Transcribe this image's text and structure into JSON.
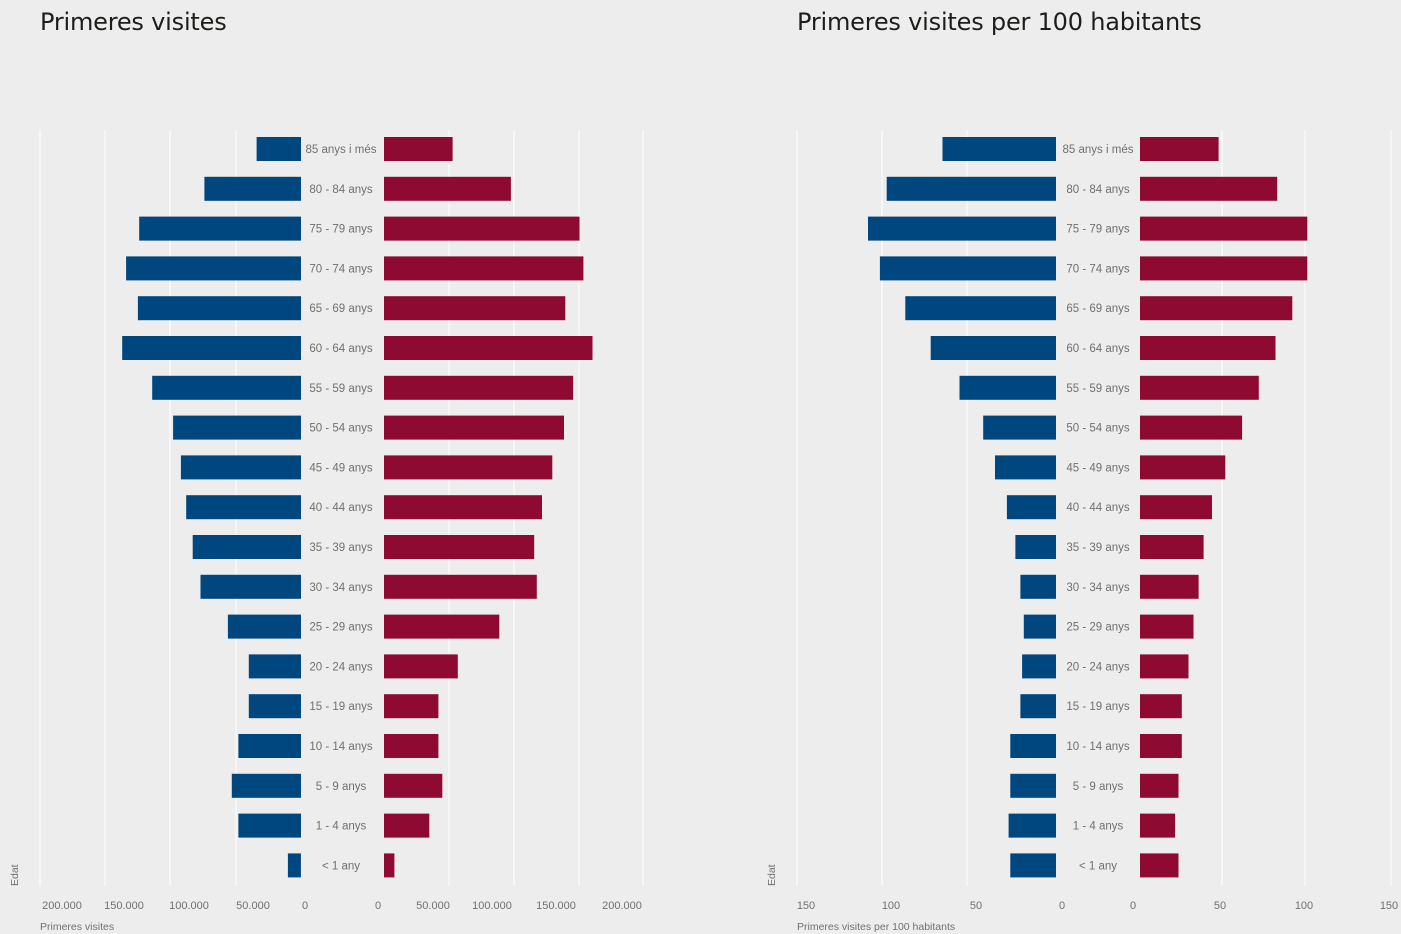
{
  "colors": {
    "left": "#00467f",
    "right": "#8f0a32",
    "background": "#ecedec",
    "grid": "#ffffff"
  },
  "chart_data": [
    {
      "type": "bar",
      "orientation": "horizontal-butterfly",
      "title": "Primeres visites",
      "xlabel": "Primeres visites",
      "ylabel": "Edat",
      "categories": [
        "85 anys i més",
        "80 - 84 anys",
        "75 - 79 anys",
        "70 - 74 anys",
        "65 - 69 anys",
        "60 - 64 anys",
        "55 - 59 anys",
        "50 - 54 anys",
        "45 - 49 anys",
        "40 - 44 anys",
        "35 - 39 anys",
        "30 - 34 anys",
        "25 - 29 anys",
        "20 - 24 anys",
        "15 - 19 anys",
        "10 - 14 anys",
        "5 - 9 anys",
        "1 - 4 anys",
        "< 1 any"
      ],
      "series": [
        {
          "side": "left",
          "color": "#00467f",
          "values": [
            34000,
            74000,
            124000,
            134000,
            125000,
            137000,
            114000,
            98000,
            92000,
            88000,
            83000,
            77000,
            56000,
            40000,
            40000,
            48000,
            53000,
            48000,
            10000
          ]
        },
        {
          "side": "right",
          "color": "#8f0a32",
          "values": [
            53000,
            98000,
            151000,
            154000,
            140000,
            161000,
            146000,
            139000,
            130000,
            122000,
            116000,
            118000,
            89000,
            57000,
            42000,
            42000,
            45000,
            35000,
            8000
          ]
        }
      ],
      "xlim": [
        0,
        200000
      ],
      "left_ticks": [
        "200.000",
        "150.000",
        "100.000",
        "50.000",
        "0"
      ],
      "right_ticks": [
        "0",
        "50.000",
        "100.000",
        "150.000",
        "200.000"
      ]
    },
    {
      "type": "bar",
      "orientation": "horizontal-butterfly",
      "title": "Primeres visites per 100 habitants",
      "xlabel": "Primeres visites per 100 habitants",
      "ylabel": "Edat",
      "categories": [
        "85 anys i més",
        "80 - 84 anys",
        "75 - 79 anys",
        "70 - 74 anys",
        "65 - 69 anys",
        "60 - 64 anys",
        "55 - 59 anys",
        "50 - 54 anys",
        "45 - 49 anys",
        "40 - 44 anys",
        "35 - 39 anys",
        "30 - 34 anys",
        "25 - 29 anys",
        "20 - 24 anys",
        "15 - 19 anys",
        "10 - 14 anys",
        "5 - 9 anys",
        "1 - 4 anys",
        "< 1 any"
      ],
      "series": [
        {
          "side": "left",
          "color": "#00467f",
          "values": [
            67,
            100,
            111,
            104,
            89,
            74,
            57,
            43,
            36,
            29,
            24,
            21,
            19,
            20,
            21,
            27,
            27,
            28,
            27
          ]
        },
        {
          "side": "right",
          "color": "#8f0a32",
          "values": [
            47,
            82,
            100,
            100,
            91,
            81,
            71,
            61,
            51,
            43,
            38,
            35,
            32,
            29,
            25,
            25,
            23,
            21,
            23
          ]
        }
      ],
      "xlim": [
        0,
        150
      ],
      "left_ticks": [
        "150",
        "100",
        "50",
        "0"
      ],
      "right_ticks": [
        "0",
        "50",
        "100",
        "150"
      ]
    }
  ]
}
